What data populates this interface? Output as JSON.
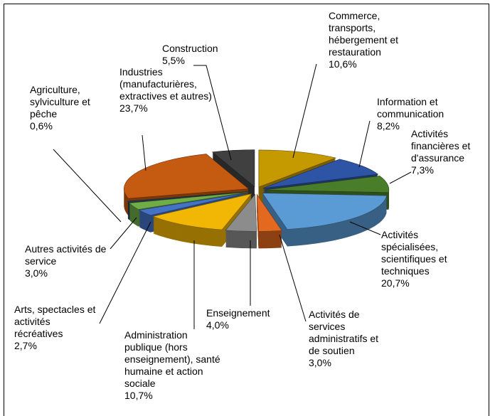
{
  "chart_data": {
    "type": "pie",
    "categories": [
      "Commerce, transports, hébergement et restauration",
      "Information et communication",
      "Activités financières et d'assurance",
      "Activités spécialisées, scientifiques et techniques",
      "Activités de services administratifs et de soutien",
      "Enseignement",
      "Administration publique (hors enseignement), santé humaine et action sociale",
      "Arts, spectacles et activités récréatives",
      "Autres activités de service",
      "Agriculture, sylviculture et pêche",
      "Industries (manufacturières, extractives et autres)",
      "Construction"
    ],
    "values": [
      10.6,
      8.2,
      7.3,
      20.7,
      3.0,
      4.0,
      10.7,
      2.7,
      3.0,
      0.6,
      23.7,
      5.5
    ],
    "value_labels": [
      "10,6%",
      "8,2%",
      "7,3%",
      "20,7%",
      "3,0%",
      "4,0%",
      "10,7%",
      "2,7%",
      "3,0%",
      "0,6%",
      "23,7%",
      "5,5%"
    ],
    "colors": [
      "#c49a00",
      "#2e55a5",
      "#4a7d2a",
      "#5b9bd5",
      "#e2691f",
      "#8c8c8c",
      "#f2b705",
      "#4472c4",
      "#70ad47",
      "#1f3f5f",
      "#c55a11",
      "#404040"
    ]
  }
}
